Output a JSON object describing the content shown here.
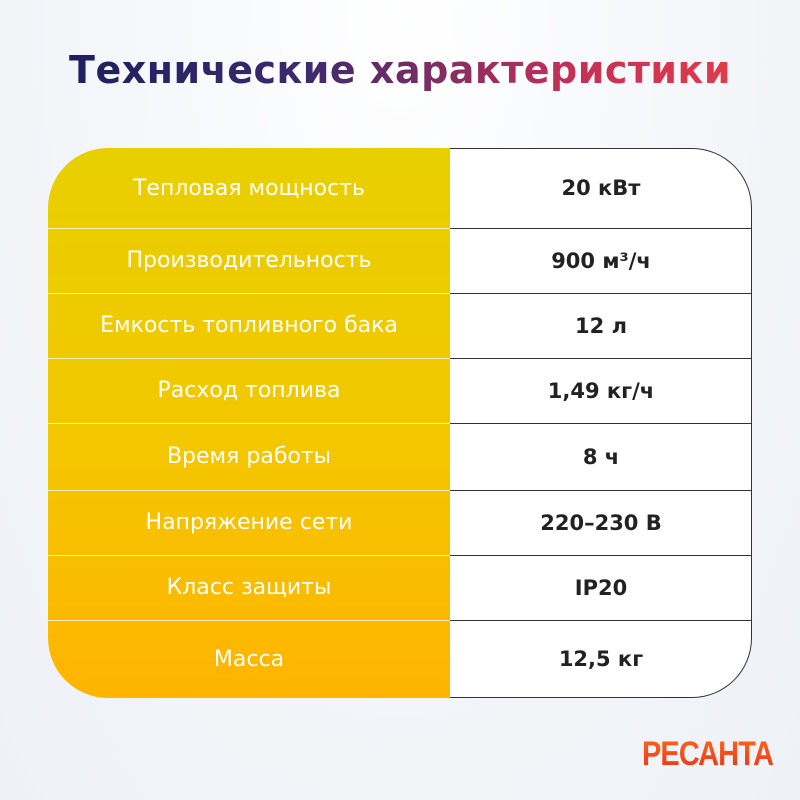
{
  "title": "Технические характеристики",
  "specs": [
    {
      "label": "Тепловая мощность",
      "value": "20 кВт"
    },
    {
      "label": "Производительность",
      "value": "900 м³/ч"
    },
    {
      "label": "Емкость топливного бака",
      "value": "12 л"
    },
    {
      "label": "Расход топлива",
      "value": "1,49 кг/ч"
    },
    {
      "label": "Время работы",
      "value": "8 ч"
    },
    {
      "label": "Напряжение сети",
      "value": "220–230 В"
    },
    {
      "label": "Класс защиты",
      "value": "IP20"
    },
    {
      "label": "Масса",
      "value": "12,5 кг"
    }
  ],
  "brand": "РЕСАНТА",
  "colors": {
    "accent_yellow": "#F2C800",
    "accent_orange": "#FFB400",
    "brand_red": "#E8301A",
    "title_navy": "#1D1F5E"
  }
}
